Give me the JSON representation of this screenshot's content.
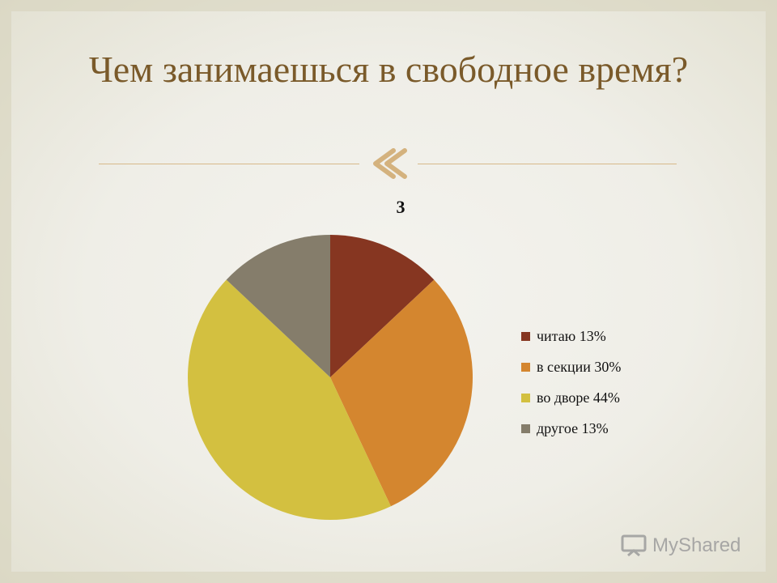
{
  "slide": {
    "title": "Чем занимаешься в свободное время?",
    "watermark": "MyShared"
  },
  "colors": {
    "title": "#7a5a2a",
    "rule": "#d7b98a",
    "ornament": "#d4b27e"
  },
  "chart_data": {
    "type": "pie",
    "title": "3",
    "legend_position": "right",
    "slices": [
      {
        "label": "читаю 13%",
        "value": 13,
        "color": "#863621"
      },
      {
        "label": "в секции 30%",
        "value": 30,
        "color": "#d4862f"
      },
      {
        "label": "во дворе 44%",
        "value": 44,
        "color": "#d3c040"
      },
      {
        "label": "другое 13%",
        "value": 13,
        "color": "#857d6b"
      }
    ]
  }
}
